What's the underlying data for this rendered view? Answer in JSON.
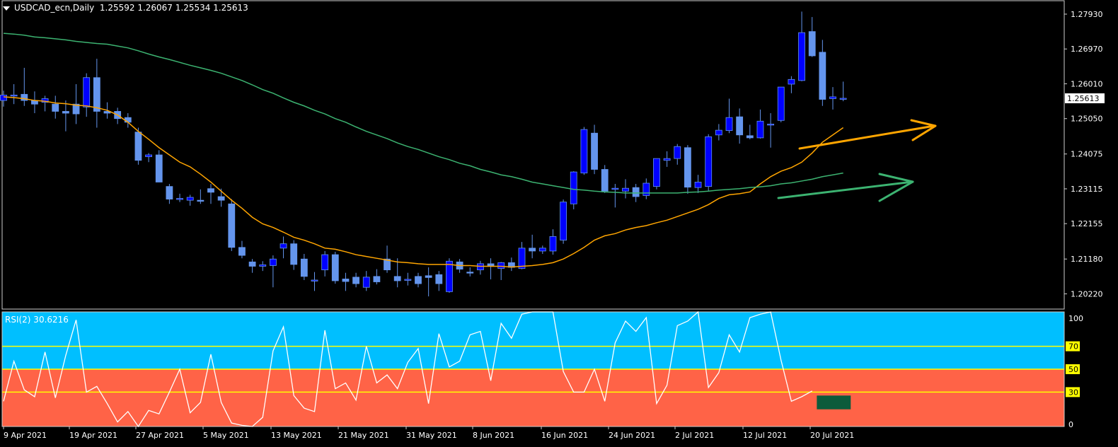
{
  "header": {
    "symbol_line": "USDCAD_ecn,Daily",
    "ohlc": "1.25592 1.26067 1.25534 1.25613"
  },
  "rsi_panel": {
    "label": "RSI(2) 30.6216",
    "levels": [
      "100",
      "70",
      "50",
      "30",
      "0"
    ]
  },
  "chart_data": [
    {
      "type": "candlestick",
      "symbol": "USDCAD_ecn",
      "timeframe": "Daily",
      "ylim": [
        1.198,
        1.283
      ],
      "y_ticks": [
        "1.27930",
        "1.26970",
        "1.26010",
        "1.25050",
        "1.24075",
        "1.23115",
        "1.22155",
        "1.21180",
        "1.20220"
      ],
      "last_price_label": "1.25613",
      "x_ticks": [
        "9 Apr 2021",
        "19 Apr 2021",
        "27 Apr 2021",
        "5 May 2021",
        "13 May 2021",
        "21 May 2021",
        "31 May 2021",
        "8 Jun 2021",
        "16 Jun 2021",
        "24 Jun 2021",
        "2 Jul 2021",
        "12 Jul 2021",
        "20 Jul 2021"
      ],
      "candles": [
        {
          "o": 1.2555,
          "h": 1.2582,
          "l": 1.2538,
          "c": 1.257
        },
        {
          "o": 1.2568,
          "h": 1.26,
          "l": 1.2545,
          "c": 1.257
        },
        {
          "o": 1.2572,
          "h": 1.2645,
          "l": 1.254,
          "c": 1.2555
        },
        {
          "o": 1.2555,
          "h": 1.258,
          "l": 1.252,
          "c": 1.2545
        },
        {
          "o": 1.255,
          "h": 1.2568,
          "l": 1.2525,
          "c": 1.256
        },
        {
          "o": 1.2545,
          "h": 1.2568,
          "l": 1.2505,
          "c": 1.2525
        },
        {
          "o": 1.2525,
          "h": 1.2555,
          "l": 1.247,
          "c": 1.252
        },
        {
          "o": 1.2545,
          "h": 1.26,
          "l": 1.249,
          "c": 1.2518
        },
        {
          "o": 1.2537,
          "h": 1.263,
          "l": 1.251,
          "c": 1.2618
        },
        {
          "o": 1.2618,
          "h": 1.267,
          "l": 1.248,
          "c": 1.2525
        },
        {
          "o": 1.2525,
          "h": 1.255,
          "l": 1.2505,
          "c": 1.252
        },
        {
          "o": 1.2525,
          "h": 1.2535,
          "l": 1.249,
          "c": 1.2505
        },
        {
          "o": 1.2508,
          "h": 1.252,
          "l": 1.248,
          "c": 1.2495
        },
        {
          "o": 1.2468,
          "h": 1.248,
          "l": 1.2378,
          "c": 1.239
        },
        {
          "o": 1.24,
          "h": 1.241,
          "l": 1.2385,
          "c": 1.2405
        },
        {
          "o": 1.2405,
          "h": 1.2418,
          "l": 1.233,
          "c": 1.233
        },
        {
          "o": 1.2318,
          "h": 1.2325,
          "l": 1.227,
          "c": 1.2283
        },
        {
          "o": 1.2285,
          "h": 1.2298,
          "l": 1.2275,
          "c": 1.2285
        },
        {
          "o": 1.228,
          "h": 1.2295,
          "l": 1.2265,
          "c": 1.2288
        },
        {
          "o": 1.228,
          "h": 1.231,
          "l": 1.227,
          "c": 1.2278
        },
        {
          "o": 1.2312,
          "h": 1.2325,
          "l": 1.227,
          "c": 1.2302
        },
        {
          "o": 1.229,
          "h": 1.2312,
          "l": 1.2262,
          "c": 1.228
        },
        {
          "o": 1.227,
          "h": 1.2283,
          "l": 1.214,
          "c": 1.215
        },
        {
          "o": 1.215,
          "h": 1.2168,
          "l": 1.212,
          "c": 1.2128
        },
        {
          "o": 1.211,
          "h": 1.2118,
          "l": 1.208,
          "c": 1.2098
        },
        {
          "o": 1.2098,
          "h": 1.2112,
          "l": 1.2085,
          "c": 1.2102
        },
        {
          "o": 1.21,
          "h": 1.2128,
          "l": 1.204,
          "c": 1.2118
        },
        {
          "o": 1.2148,
          "h": 1.218,
          "l": 1.212,
          "c": 1.216
        },
        {
          "o": 1.216,
          "h": 1.217,
          "l": 1.2088,
          "c": 1.2103
        },
        {
          "o": 1.2118,
          "h": 1.2132,
          "l": 1.206,
          "c": 1.207
        },
        {
          "o": 1.206,
          "h": 1.2082,
          "l": 1.203,
          "c": 1.206
        },
        {
          "o": 1.2088,
          "h": 1.214,
          "l": 1.207,
          "c": 1.213
        },
        {
          "o": 1.213,
          "h": 1.2138,
          "l": 1.205,
          "c": 1.2058
        },
        {
          "o": 1.2063,
          "h": 1.208,
          "l": 1.203,
          "c": 1.2056
        },
        {
          "o": 1.2068,
          "h": 1.208,
          "l": 1.204,
          "c": 1.205
        },
        {
          "o": 1.204,
          "h": 1.2085,
          "l": 1.203,
          "c": 1.2068
        },
        {
          "o": 1.207,
          "h": 1.209,
          "l": 1.2048,
          "c": 1.2055
        },
        {
          "o": 1.2118,
          "h": 1.2155,
          "l": 1.208,
          "c": 1.2088
        },
        {
          "o": 1.207,
          "h": 1.212,
          "l": 1.204,
          "c": 1.2058
        },
        {
          "o": 1.2062,
          "h": 1.208,
          "l": 1.2045,
          "c": 1.2062
        },
        {
          "o": 1.207,
          "h": 1.208,
          "l": 1.204,
          "c": 1.205
        },
        {
          "o": 1.2072,
          "h": 1.2095,
          "l": 1.2015,
          "c": 1.2067
        },
        {
          "o": 1.2075,
          "h": 1.2085,
          "l": 1.203,
          "c": 1.205
        },
        {
          "o": 1.2028,
          "h": 1.212,
          "l": 1.2025,
          "c": 1.2112
        },
        {
          "o": 1.211,
          "h": 1.2118,
          "l": 1.208,
          "c": 1.209
        },
        {
          "o": 1.2082,
          "h": 1.2095,
          "l": 1.207,
          "c": 1.208
        },
        {
          "o": 1.2088,
          "h": 1.2113,
          "l": 1.2075,
          "c": 1.2105
        },
        {
          "o": 1.2105,
          "h": 1.212,
          "l": 1.2062,
          "c": 1.2098
        },
        {
          "o": 1.2092,
          "h": 1.211,
          "l": 1.206,
          "c": 1.2108
        },
        {
          "o": 1.2108,
          "h": 1.2122,
          "l": 1.2085,
          "c": 1.2095
        },
        {
          "o": 1.2092,
          "h": 1.2165,
          "l": 1.209,
          "c": 1.2148
        },
        {
          "o": 1.2148,
          "h": 1.2185,
          "l": 1.212,
          "c": 1.214
        },
        {
          "o": 1.214,
          "h": 1.2155,
          "l": 1.2132,
          "c": 1.2148
        },
        {
          "o": 1.214,
          "h": 1.22,
          "l": 1.213,
          "c": 1.218
        },
        {
          "o": 1.217,
          "h": 1.2282,
          "l": 1.216,
          "c": 1.2275
        },
        {
          "o": 1.227,
          "h": 1.236,
          "l": 1.2255,
          "c": 1.2358
        },
        {
          "o": 1.2355,
          "h": 1.2482,
          "l": 1.235,
          "c": 1.2475
        },
        {
          "o": 1.2465,
          "h": 1.2488,
          "l": 1.2352,
          "c": 1.2365
        },
        {
          "o": 1.2365,
          "h": 1.2377,
          "l": 1.23,
          "c": 1.2305
        },
        {
          "o": 1.231,
          "h": 1.2325,
          "l": 1.226,
          "c": 1.2313
        },
        {
          "o": 1.2305,
          "h": 1.2338,
          "l": 1.2285,
          "c": 1.2313
        },
        {
          "o": 1.2315,
          "h": 1.2325,
          "l": 1.2275,
          "c": 1.229
        },
        {
          "o": 1.2293,
          "h": 1.234,
          "l": 1.2283,
          "c": 1.2327
        },
        {
          "o": 1.2318,
          "h": 1.2395,
          "l": 1.231,
          "c": 1.2395
        },
        {
          "o": 1.239,
          "h": 1.2415,
          "l": 1.2372,
          "c": 1.2395
        },
        {
          "o": 1.2395,
          "h": 1.2435,
          "l": 1.2378,
          "c": 1.2428
        },
        {
          "o": 1.2425,
          "h": 1.2432,
          "l": 1.2298,
          "c": 1.2316
        },
        {
          "o": 1.2315,
          "h": 1.235,
          "l": 1.23,
          "c": 1.233
        },
        {
          "o": 1.2318,
          "h": 1.2462,
          "l": 1.2306,
          "c": 1.2455
        },
        {
          "o": 1.246,
          "h": 1.249,
          "l": 1.2445,
          "c": 1.2473
        },
        {
          "o": 1.2472,
          "h": 1.256,
          "l": 1.2465,
          "c": 1.2508
        },
        {
          "o": 1.251,
          "h": 1.2533,
          "l": 1.2436,
          "c": 1.246
        },
        {
          "o": 1.2458,
          "h": 1.2488,
          "l": 1.2448,
          "c": 1.2452
        },
        {
          "o": 1.2452,
          "h": 1.253,
          "l": 1.245,
          "c": 1.2498
        },
        {
          "o": 1.249,
          "h": 1.252,
          "l": 1.2425,
          "c": 1.249
        },
        {
          "o": 1.25,
          "h": 1.259,
          "l": 1.2495,
          "c": 1.2592
        },
        {
          "o": 1.26,
          "h": 1.2622,
          "l": 1.2575,
          "c": 1.2613
        },
        {
          "o": 1.261,
          "h": 1.28,
          "l": 1.2608,
          "c": 1.2742
        },
        {
          "o": 1.2745,
          "h": 1.2785,
          "l": 1.2675,
          "c": 1.2678
        },
        {
          "o": 1.2688,
          "h": 1.2722,
          "l": 1.254,
          "c": 1.2558
        },
        {
          "o": 1.256,
          "h": 1.2592,
          "l": 1.253,
          "c": 1.2565
        },
        {
          "o": 1.2559,
          "h": 1.2607,
          "l": 1.2553,
          "c": 1.2561
        }
      ],
      "series": [
        {
          "name": "",
          "color": "#ffa500",
          "values": [
            1.2565,
            1.2563,
            1.256,
            1.2555,
            1.2553,
            1.2548,
            1.2546,
            1.2542,
            1.254,
            1.2535,
            1.2528,
            1.2515,
            1.2495,
            1.247,
            1.2448,
            1.2425,
            1.2405,
            1.2385,
            1.2372,
            1.2352,
            1.233,
            1.2305,
            1.228,
            1.2258,
            1.2233,
            1.2215,
            1.2205,
            1.2192,
            1.2178,
            1.217,
            1.216,
            1.2148,
            1.2145,
            1.2138,
            1.213,
            1.2125,
            1.212,
            1.2115,
            1.211,
            1.2108,
            1.2105,
            1.2103,
            1.2103,
            1.2103,
            1.21,
            1.21,
            1.2098,
            1.2098,
            1.2098,
            1.2096,
            1.2098,
            1.21,
            1.2103,
            1.2108,
            1.2118,
            1.2133,
            1.215,
            1.217,
            1.2182,
            1.2188,
            1.2198,
            1.2205,
            1.221,
            1.2218,
            1.2225,
            1.2235,
            1.2245,
            1.2255,
            1.2268,
            1.2285,
            1.2295,
            1.2298,
            1.2303,
            1.2325,
            1.2345,
            1.236,
            1.237,
            1.2385,
            1.241,
            1.244,
            1.246,
            1.248
          ]
        },
        {
          "name": "",
          "color": "#3cb371",
          "values": [
            1.274,
            1.2738,
            1.2735,
            1.273,
            1.2728,
            1.2725,
            1.2722,
            1.2718,
            1.2715,
            1.2712,
            1.271,
            1.2705,
            1.27,
            1.2692,
            1.2683,
            1.2675,
            1.2668,
            1.266,
            1.2652,
            1.2645,
            1.2638,
            1.263,
            1.262,
            1.261,
            1.2598,
            1.2585,
            1.2575,
            1.2562,
            1.255,
            1.254,
            1.2528,
            1.2518,
            1.2505,
            1.2495,
            1.2482,
            1.247,
            1.246,
            1.245,
            1.2438,
            1.2428,
            1.242,
            1.241,
            1.24,
            1.2392,
            1.2382,
            1.2375,
            1.2365,
            1.2358,
            1.235,
            1.2345,
            1.2338,
            1.233,
            1.2325,
            1.232,
            1.2315,
            1.231,
            1.2308,
            1.2305,
            1.2303,
            1.2302,
            1.23,
            1.23,
            1.23,
            1.23,
            1.23,
            1.23,
            1.2302,
            1.2303,
            1.2305,
            1.2308,
            1.231,
            1.2312,
            1.2315,
            1.2317,
            1.232,
            1.2325,
            1.2328,
            1.2333,
            1.2338,
            1.2345,
            1.235,
            1.2355
          ]
        }
      ]
    },
    {
      "type": "line",
      "title": "RSI(2) 30.6216",
      "ylim": [
        0,
        100
      ],
      "levels": [
        70,
        50,
        30
      ],
      "colors": {
        "upper_band": "#00bfff",
        "lower_band": "#ff6347",
        "level_line": "#ffff00",
        "rsi_line": "#ffffff"
      },
      "values": [
        22,
        57,
        32,
        26,
        65,
        25,
        62,
        93,
        30,
        35,
        20,
        4,
        13,
        0,
        14,
        11,
        30,
        50,
        12,
        21,
        63,
        21,
        3,
        1,
        0,
        8,
        66,
        87,
        27,
        16,
        13,
        84,
        33,
        38,
        23,
        70,
        38,
        45,
        33,
        56,
        68,
        20,
        81,
        52,
        57,
        80,
        83,
        40,
        90,
        77,
        98,
        100,
        100,
        100,
        48,
        30,
        30,
        50,
        22,
        73,
        92,
        83,
        95,
        20,
        36,
        88,
        92,
        100,
        34,
        47,
        80,
        65,
        95,
        98,
        100,
        58,
        22,
        26,
        31
      ]
    }
  ]
}
